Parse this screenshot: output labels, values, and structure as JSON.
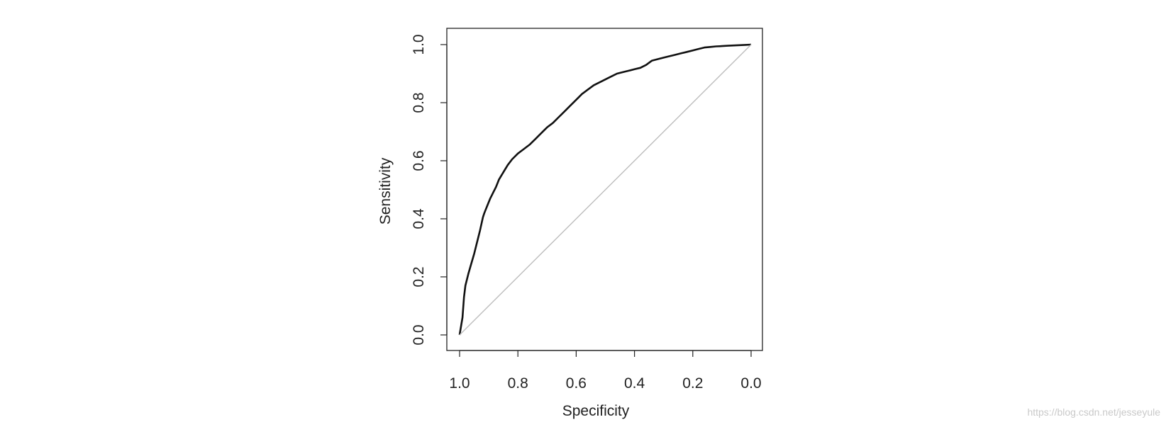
{
  "chart_data": {
    "type": "line",
    "title": "",
    "xlabel": "Specificity",
    "ylabel": "Sensitivity",
    "xlim": [
      1.0,
      0.0
    ],
    "ylim": [
      0.0,
      1.0
    ],
    "x_reversed": true,
    "grid": false,
    "x_ticks": [
      "1.0",
      "0.8",
      "0.6",
      "0.4",
      "0.2",
      "0.0"
    ],
    "y_ticks": [
      "0.0",
      "0.2",
      "0.4",
      "0.6",
      "0.8",
      "1.0"
    ],
    "series": [
      {
        "color": "#111111",
        "x": [
          1.0,
          0.99,
          0.985,
          0.98,
          0.97,
          0.96,
          0.95,
          0.94,
          0.93,
          0.92,
          0.915,
          0.905,
          0.895,
          0.885,
          0.875,
          0.865,
          0.85,
          0.835,
          0.82,
          0.8,
          0.78,
          0.76,
          0.74,
          0.72,
          0.7,
          0.68,
          0.66,
          0.64,
          0.62,
          0.6,
          0.58,
          0.56,
          0.54,
          0.52,
          0.5,
          0.48,
          0.46,
          0.44,
          0.42,
          0.4,
          0.38,
          0.36,
          0.34,
          0.32,
          0.3,
          0.28,
          0.26,
          0.24,
          0.22,
          0.2,
          0.18,
          0.16,
          0.14,
          0.12,
          0.1,
          0.08,
          0.06,
          0.04,
          0.02,
          0.0
        ],
        "y": [
          0.0,
          0.06,
          0.13,
          0.17,
          0.21,
          0.245,
          0.28,
          0.32,
          0.36,
          0.405,
          0.42,
          0.445,
          0.47,
          0.49,
          0.51,
          0.535,
          0.56,
          0.585,
          0.605,
          0.625,
          0.64,
          0.655,
          0.675,
          0.695,
          0.715,
          0.73,
          0.75,
          0.77,
          0.79,
          0.81,
          0.83,
          0.845,
          0.86,
          0.87,
          0.88,
          0.89,
          0.9,
          0.905,
          0.91,
          0.915,
          0.92,
          0.93,
          0.945,
          0.95,
          0.955,
          0.96,
          0.965,
          0.97,
          0.975,
          0.98,
          0.985,
          0.99,
          0.992,
          0.994,
          0.995,
          0.996,
          0.997,
          0.998,
          0.999,
          1.0
        ]
      },
      {
        "color": "#bdbdbd",
        "x": [
          1.0,
          0.0
        ],
        "y": [
          0.0,
          1.0
        ]
      }
    ]
  },
  "watermark": "https://blog.csdn.net/jesseyule"
}
